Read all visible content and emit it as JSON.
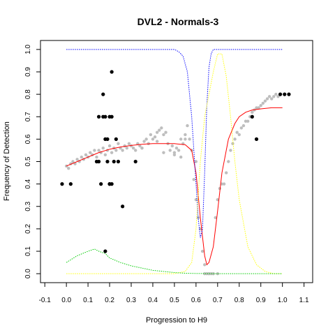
{
  "chart_data": {
    "type": "scatter",
    "title": "DVL2 - Normals-3",
    "xlabel": "Progression to H9",
    "ylabel": "Frequency of Detection",
    "xlim": [
      -0.12,
      1.14
    ],
    "ylim": [
      -0.04,
      1.04
    ],
    "x_ticks": [
      -0.1,
      0.0,
      0.1,
      0.2,
      0.3,
      0.4,
      0.5,
      0.6,
      0.7,
      0.8,
      0.9,
      1.0,
      1.1
    ],
    "x_tick_labels": [
      "-0.1",
      "0.0",
      "0.1",
      "0.2",
      "0.3",
      "0.4",
      "0.5",
      "0.6",
      "0.7",
      "0.8",
      "0.9",
      "1.0",
      "1.1"
    ],
    "y_ticks": [
      0.0,
      0.1,
      0.2,
      0.3,
      0.4,
      0.5,
      0.6,
      0.7,
      0.8,
      0.9,
      1.0
    ],
    "y_tick_labels": [
      "0.0",
      "0.1",
      "0.2",
      "0.3",
      "0.4",
      "0.5",
      "0.6",
      "0.7",
      "0.8",
      "0.9",
      "1.0"
    ],
    "grid": false,
    "legend": "none",
    "colors": {
      "black_points": "#000000",
      "grey_points": "#bebebe",
      "red_curve": "#ff0000",
      "blue_curve": "#0000ff",
      "yellow_curve": "#ffff00",
      "green_curve": "#00cc00"
    },
    "series": [
      {
        "kind": "points",
        "color": "#000000",
        "x": [
          -0.02,
          0.02,
          0.14,
          0.15,
          0.15,
          0.16,
          0.17,
          0.17,
          0.18,
          0.18,
          0.18,
          0.19,
          0.19,
          0.2,
          0.2,
          0.2,
          0.21,
          0.21,
          0.21,
          0.22,
          0.23,
          0.24,
          0.26,
          0.32,
          0.86,
          0.88,
          0.99,
          1.01,
          1.03
        ],
        "y": [
          0.4,
          0.4,
          0.5,
          0.7,
          0.5,
          0.4,
          0.7,
          0.8,
          0.6,
          0.1,
          0.7,
          0.6,
          0.5,
          0.7,
          0.4,
          0.4,
          0.9,
          0.7,
          0.4,
          0.5,
          0.6,
          0.5,
          0.3,
          0.5,
          0.7,
          0.6,
          0.8,
          0.8,
          0.8
        ]
      },
      {
        "kind": "points",
        "color": "#bebebe",
        "x": [
          0.0,
          0.01,
          0.02,
          0.03,
          0.04,
          0.05,
          0.06,
          0.07,
          0.08,
          0.09,
          0.1,
          0.11,
          0.12,
          0.13,
          0.14,
          0.15,
          0.16,
          0.17,
          0.18,
          0.19,
          0.2,
          0.21,
          0.22,
          0.23,
          0.24,
          0.25,
          0.26,
          0.27,
          0.28,
          0.29,
          0.3,
          0.31,
          0.32,
          0.33,
          0.34,
          0.35,
          0.36,
          0.37,
          0.38,
          0.39,
          0.4,
          0.41,
          0.42,
          0.43,
          0.44,
          0.45,
          0.46,
          0.47,
          0.48,
          0.49,
          0.5,
          0.51,
          0.52,
          0.53,
          0.54,
          0.55,
          0.56,
          0.57,
          0.58,
          0.59,
          0.6,
          0.61,
          0.62,
          0.63,
          0.64,
          0.65,
          0.66,
          0.67,
          0.68,
          0.69,
          0.7,
          0.71,
          0.72,
          0.73,
          0.74,
          0.75,
          0.76,
          0.77,
          0.78,
          0.79,
          0.8,
          0.81,
          0.82,
          0.83,
          0.84,
          0.85,
          0.86,
          0.87,
          0.88,
          0.89,
          0.9,
          0.91,
          0.92,
          0.93,
          0.94,
          0.95,
          0.96,
          0.97,
          0.98,
          0.99,
          0.64,
          0.66,
          0.68,
          0.7,
          0.6,
          0.58,
          0.55,
          0.53,
          0.5,
          0.45,
          0.42,
          0.38,
          0.35
        ],
        "y": [
          0.48,
          0.47,
          0.49,
          0.5,
          0.49,
          0.51,
          0.5,
          0.52,
          0.51,
          0.53,
          0.52,
          0.54,
          0.53,
          0.55,
          0.52,
          0.55,
          0.54,
          0.56,
          0.53,
          0.55,
          0.57,
          0.54,
          0.56,
          0.55,
          0.58,
          0.56,
          0.55,
          0.57,
          0.56,
          0.58,
          0.57,
          0.56,
          0.55,
          0.58,
          0.57,
          0.56,
          0.59,
          0.6,
          0.58,
          0.62,
          0.6,
          0.61,
          0.63,
          0.64,
          0.65,
          0.62,
          0.63,
          0.58,
          0.55,
          0.57,
          0.54,
          0.56,
          0.55,
          0.6,
          0.58,
          0.62,
          0.66,
          0.6,
          0.55,
          0.42,
          0.33,
          0.25,
          0.2,
          0.1,
          0.04,
          0.0,
          0.0,
          0.0,
          0.0,
          0.25,
          0.33,
          0.38,
          0.4,
          0.4,
          0.45,
          0.5,
          0.55,
          0.58,
          0.6,
          0.63,
          0.62,
          0.65,
          0.66,
          0.68,
          0.68,
          0.7,
          0.72,
          0.73,
          0.74,
          0.74,
          0.75,
          0.76,
          0.77,
          0.78,
          0.79,
          0.78,
          0.79,
          0.8,
          0.79,
          0.8,
          0.0,
          0.0,
          0.0,
          0.0,
          0.5,
          0.55,
          0.6,
          0.52,
          0.53,
          0.54,
          0.59,
          0.58,
          0.56
        ]
      },
      {
        "kind": "curve",
        "color": "#ff0000",
        "x": [
          0.0,
          0.05,
          0.1,
          0.15,
          0.2,
          0.25,
          0.3,
          0.35,
          0.4,
          0.45,
          0.5,
          0.55,
          0.58,
          0.6,
          0.62,
          0.64,
          0.65,
          0.66,
          0.68,
          0.7,
          0.72,
          0.75,
          0.78,
          0.8,
          0.83,
          0.86,
          0.9,
          0.95,
          1.0
        ],
        "y": [
          0.48,
          0.5,
          0.52,
          0.54,
          0.555,
          0.565,
          0.572,
          0.577,
          0.58,
          0.58,
          0.58,
          0.575,
          0.55,
          0.45,
          0.25,
          0.08,
          0.04,
          0.05,
          0.12,
          0.28,
          0.45,
          0.6,
          0.67,
          0.7,
          0.72,
          0.73,
          0.735,
          0.74,
          0.74
        ]
      },
      {
        "kind": "curve",
        "color": "#0000ff",
        "dashed": true,
        "x": [
          0.0,
          0.1,
          0.2,
          0.3,
          0.4,
          0.5,
          0.52,
          0.54,
          0.56,
          0.58,
          0.6,
          0.61,
          0.62,
          0.63,
          0.64,
          0.65,
          0.66,
          0.67,
          0.68,
          0.7,
          0.72,
          0.75,
          0.8,
          0.9,
          1.0
        ],
        "y": [
          1.0,
          1.0,
          1.0,
          1.0,
          1.0,
          1.0,
          0.99,
          0.97,
          0.9,
          0.7,
          0.4,
          0.25,
          0.16,
          0.2,
          0.45,
          0.75,
          0.92,
          0.98,
          1.0,
          1.0,
          1.0,
          1.0,
          1.0,
          1.0,
          1.0
        ]
      },
      {
        "kind": "curve",
        "color": "#ffff00",
        "dashed": true,
        "x": [
          0.0,
          0.2,
          0.4,
          0.5,
          0.55,
          0.58,
          0.6,
          0.62,
          0.64,
          0.66,
          0.68,
          0.7,
          0.72,
          0.74,
          0.76,
          0.78,
          0.8,
          0.84,
          0.88,
          0.92,
          0.96,
          1.0
        ],
        "y": [
          0.0,
          0.0,
          0.0,
          0.0,
          0.01,
          0.05,
          0.2,
          0.5,
          0.7,
          0.8,
          0.9,
          0.98,
          0.98,
          0.88,
          0.7,
          0.5,
          0.33,
          0.12,
          0.04,
          0.01,
          0.0,
          0.0
        ]
      },
      {
        "kind": "curve",
        "color": "#00cc00",
        "dashed": true,
        "x": [
          0.0,
          0.05,
          0.1,
          0.13,
          0.15,
          0.18,
          0.2,
          0.25,
          0.3,
          0.35,
          0.4,
          0.45,
          0.5,
          0.55,
          0.6,
          0.7,
          0.8,
          0.9,
          1.0
        ],
        "y": [
          0.05,
          0.08,
          0.1,
          0.11,
          0.1,
          0.09,
          0.07,
          0.05,
          0.035,
          0.025,
          0.015,
          0.01,
          0.005,
          0.002,
          0.001,
          0.0,
          0.0,
          0.0,
          0.0
        ]
      }
    ]
  }
}
